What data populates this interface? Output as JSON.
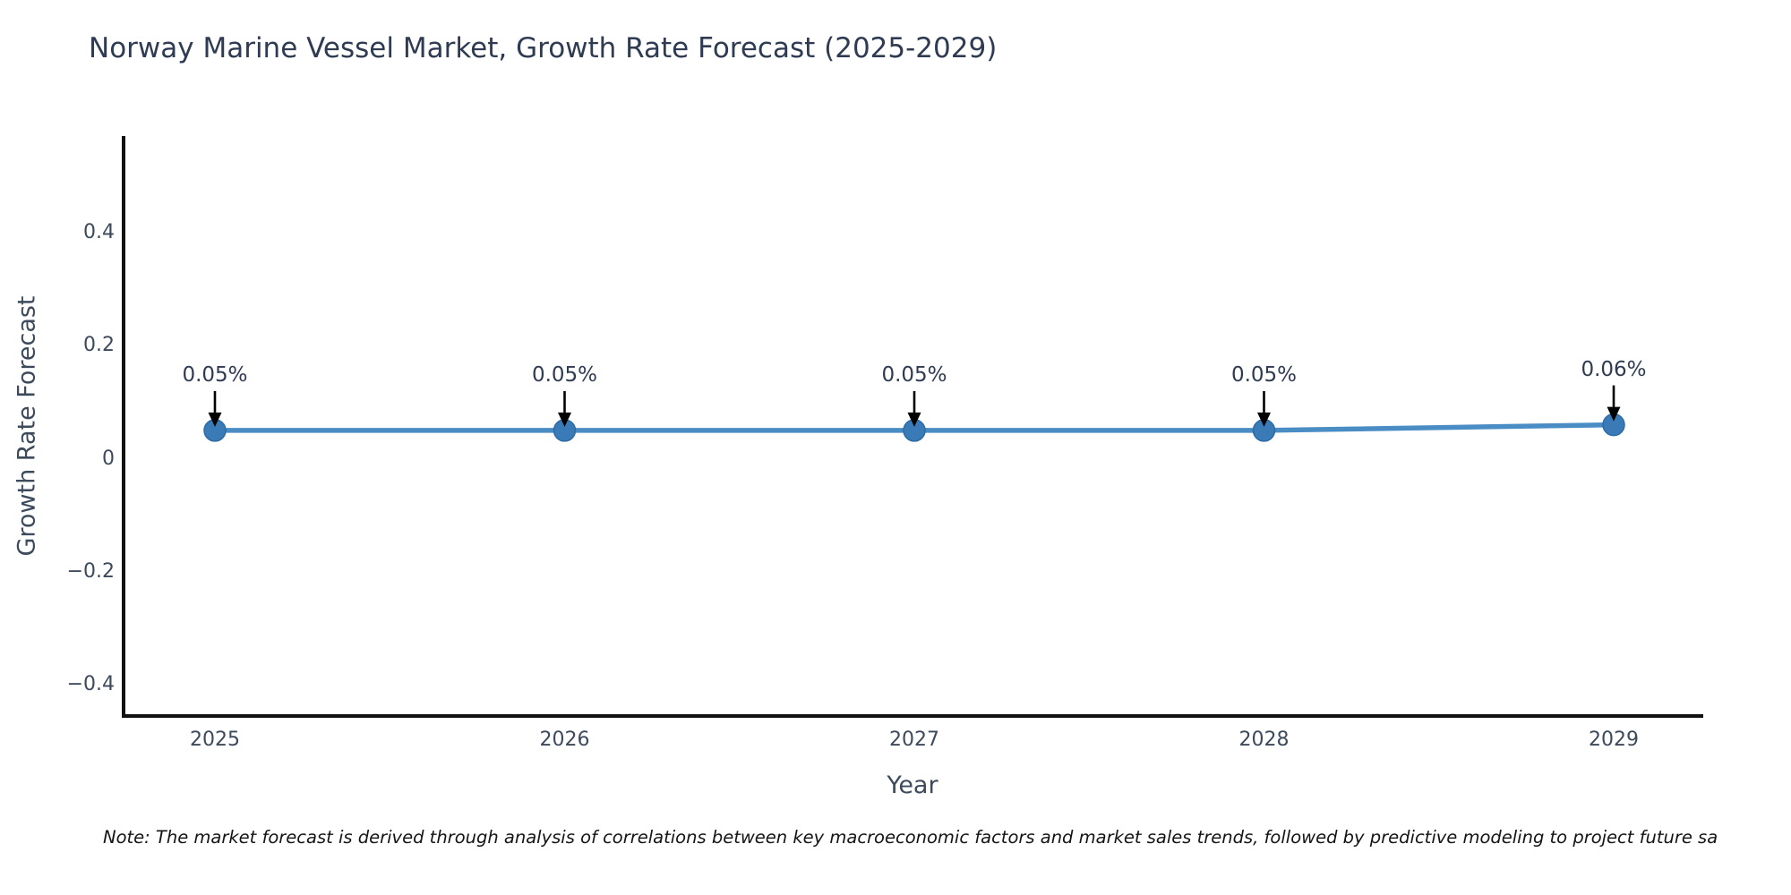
{
  "chart_data": {
    "type": "line",
    "title": "Norway Marine Vessel Market, Growth Rate Forecast (2025-2029)",
    "xlabel": "Year",
    "ylabel": "Growth Rate Forecast",
    "categories": [
      "2025",
      "2026",
      "2027",
      "2028",
      "2029"
    ],
    "series": [
      {
        "name": "Growth Rate Forecast",
        "values": [
          0.05,
          0.05,
          0.05,
          0.05,
          0.06
        ]
      }
    ],
    "point_labels": [
      "0.05%",
      "0.05%",
      "0.05%",
      "0.05%",
      "0.06%"
    ],
    "ytick_labels": [
      "0.4",
      "0.2",
      "0",
      "−0.2",
      "−0.4"
    ],
    "ytick_values": [
      0.4,
      0.2,
      0,
      -0.2,
      -0.4
    ],
    "ylim": [
      -0.46,
      0.57
    ],
    "grid": false,
    "legend": "none",
    "colors": {
      "line": "#4a8cc4",
      "marker": "#3a7ab6",
      "marker_edge": "#2f6ba6",
      "axis": "#111111",
      "tick_text": "#3d4a5c",
      "title_text": "#2f3b52",
      "arrow": "#000000"
    }
  },
  "note": {
    "text": "Note: The market forecast is derived through analysis of correlations between key macroeconomic factors and market sales trends, followed by predictive modeling to project future sa"
  }
}
